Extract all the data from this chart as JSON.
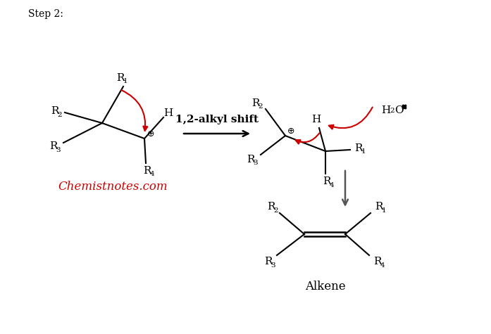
{
  "step_label": "Step 2:",
  "arrow_label": "1,2-alkyl shift",
  "watermark": "Chemistnotes.com",
  "alkene_label": "Alkene",
  "bg_color": "#ffffff",
  "line_color": "#000000",
  "red_color": "#cc0000",
  "watermark_color": "#cc0000",
  "fs_main": 11,
  "fs_sub": 7.5,
  "fs_watermark": 12,
  "fs_step": 10,
  "fs_arrow_label": 11
}
